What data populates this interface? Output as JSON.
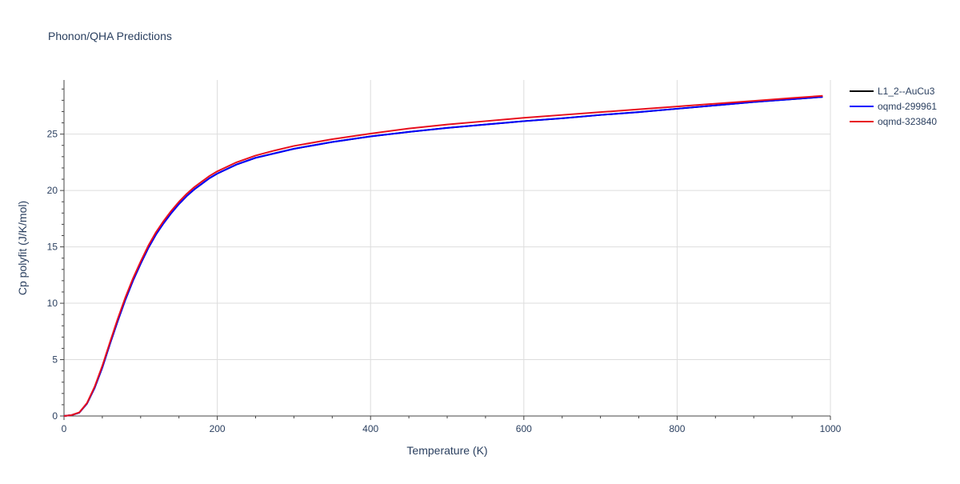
{
  "chart_data": {
    "type": "line",
    "title": "Phonon/QHA Predictions",
    "xlabel": "Temperature (K)",
    "ylabel": "Cp polyfit (J/K/mol)",
    "xlim": [
      0,
      1000
    ],
    "ylim": [
      0,
      29.8
    ],
    "xticks": [
      0,
      200,
      400,
      600,
      800,
      1000
    ],
    "yticks": [
      0,
      5,
      10,
      15,
      20,
      25
    ],
    "grid": true,
    "legend_position": "top-right",
    "series": [
      {
        "name": "L1_2--AuCu3",
        "color": "#000000",
        "x": [
          0,
          10,
          20,
          30,
          40,
          50,
          60,
          70,
          80,
          90,
          100,
          110,
          120,
          130,
          140,
          150,
          160,
          170,
          180,
          190,
          200,
          225,
          250,
          275,
          300,
          350,
          400,
          450,
          500,
          550,
          600,
          650,
          700,
          750,
          800,
          850,
          900,
          950,
          990
        ],
        "y": [
          0,
          0.08,
          0.3,
          1.1,
          2.5,
          4.3,
          6.4,
          8.4,
          10.3,
          12.0,
          13.5,
          14.9,
          16.1,
          17.1,
          18.0,
          18.8,
          19.5,
          20.1,
          20.6,
          21.1,
          21.5,
          22.3,
          22.9,
          23.3,
          23.7,
          24.3,
          24.8,
          25.2,
          25.55,
          25.85,
          26.15,
          26.4,
          26.7,
          26.95,
          27.25,
          27.55,
          27.85,
          28.1,
          28.3
        ]
      },
      {
        "name": "oqmd-299961",
        "color": "#0000ff",
        "x": [
          0,
          10,
          20,
          30,
          40,
          50,
          60,
          70,
          80,
          90,
          100,
          110,
          120,
          130,
          140,
          150,
          160,
          170,
          180,
          190,
          200,
          225,
          250,
          275,
          300,
          350,
          400,
          450,
          500,
          550,
          600,
          650,
          700,
          750,
          800,
          850,
          900,
          950,
          990
        ],
        "y": [
          0,
          0.08,
          0.3,
          1.1,
          2.5,
          4.3,
          6.4,
          8.4,
          10.3,
          12.0,
          13.5,
          14.9,
          16.1,
          17.1,
          18.0,
          18.8,
          19.5,
          20.1,
          20.6,
          21.1,
          21.5,
          22.3,
          22.9,
          23.3,
          23.7,
          24.3,
          24.8,
          25.2,
          25.55,
          25.85,
          26.15,
          26.4,
          26.7,
          26.95,
          27.25,
          27.55,
          27.85,
          28.1,
          28.3
        ]
      },
      {
        "name": "oqmd-323840",
        "color": "#e8101e",
        "x": [
          0,
          10,
          20,
          30,
          40,
          50,
          60,
          70,
          80,
          90,
          100,
          110,
          120,
          130,
          140,
          150,
          160,
          170,
          180,
          190,
          200,
          225,
          250,
          275,
          300,
          350,
          400,
          450,
          500,
          550,
          600,
          650,
          700,
          750,
          800,
          850,
          900,
          950,
          990
        ],
        "y": [
          0,
          0.08,
          0.32,
          1.15,
          2.6,
          4.45,
          6.55,
          8.6,
          10.5,
          12.2,
          13.7,
          15.1,
          16.3,
          17.3,
          18.2,
          19.0,
          19.7,
          20.3,
          20.8,
          21.3,
          21.7,
          22.5,
          23.1,
          23.55,
          23.95,
          24.55,
          25.05,
          25.5,
          25.85,
          26.15,
          26.45,
          26.7,
          26.95,
          27.2,
          27.45,
          27.7,
          27.95,
          28.2,
          28.4
        ]
      }
    ]
  }
}
